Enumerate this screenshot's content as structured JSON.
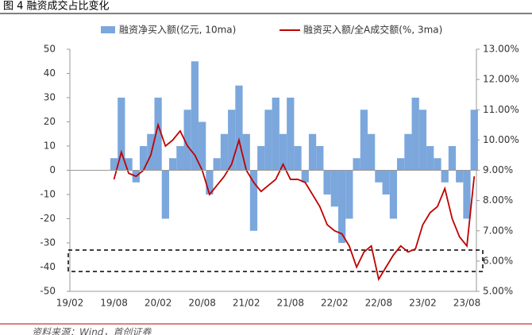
{
  "chart_data": {
    "type": "bar-line",
    "title": "图 4 融资成交占比变化",
    "source": "资料来源：Wind，首创证券",
    "categories": [
      "19/02",
      null,
      null,
      null,
      null,
      null,
      "19/08",
      null,
      null,
      null,
      null,
      null,
      "20/02",
      null,
      null,
      null,
      null,
      null,
      "20/08",
      null,
      null,
      null,
      null,
      null,
      "21/02",
      null,
      null,
      null,
      null,
      null,
      "21/08",
      null,
      null,
      null,
      null,
      null,
      "22/02",
      null,
      null,
      null,
      null,
      null,
      "22/08",
      null,
      null,
      null,
      null,
      null,
      "23/02",
      null,
      null,
      null,
      null,
      null,
      "23/08",
      null
    ],
    "series": [
      {
        "name": "融资净买入额(亿元, 10ma)",
        "color": "#7ba7dc",
        "axis": "y",
        "values": [
          null,
          null,
          null,
          null,
          null,
          0,
          5,
          30,
          5,
          -5,
          10,
          15,
          30,
          -20,
          5,
          10,
          25,
          45,
          20,
          -10,
          5,
          15,
          25,
          35,
          15,
          -25,
          10,
          25,
          30,
          15,
          30,
          10,
          -5,
          15,
          10,
          -10,
          -15,
          -30,
          -20,
          5,
          25,
          15,
          -5,
          -10,
          -20,
          5,
          15,
          30,
          25,
          10,
          5,
          -5,
          10,
          -5,
          -20,
          25
        ]
      },
      {
        "name": "融资买入额/全A成交额(%, 3ma)",
        "color": "#c00000",
        "axis": "y2",
        "values": [
          null,
          null,
          null,
          null,
          null,
          null,
          8.7,
          9.6,
          8.9,
          8.8,
          9.0,
          9.5,
          10.5,
          9.8,
          10.0,
          10.3,
          9.8,
          9.5,
          9.0,
          8.2,
          8.5,
          8.8,
          9.2,
          10.0,
          9.0,
          8.6,
          8.3,
          8.5,
          8.7,
          9.2,
          8.7,
          8.7,
          8.6,
          8.2,
          7.8,
          7.2,
          7.0,
          6.9,
          6.5,
          5.8,
          6.3,
          6.5,
          5.4,
          5.8,
          6.2,
          6.5,
          6.3,
          6.4,
          7.2,
          7.6,
          7.8,
          8.4,
          7.4,
          6.8,
          6.5,
          8.8
        ]
      }
    ],
    "ylim": [
      -50,
      50
    ],
    "yticks": [
      -50,
      -40,
      -30,
      -20,
      -10,
      0,
      10,
      20,
      30,
      40,
      50
    ],
    "y2lim": [
      5,
      13
    ],
    "y2ticks": [
      {
        "value": 5,
        "label": "5.00%"
      },
      {
        "value": 6,
        "label": "6.00%"
      },
      {
        "value": 7,
        "label": "7.00%"
      },
      {
        "value": 8,
        "label": "8.00%"
      },
      {
        "value": 9,
        "label": "9.00%"
      },
      {
        "value": 10,
        "label": "10.00%"
      },
      {
        "value": 11,
        "label": "11.00%"
      },
      {
        "value": 12,
        "label": "12.00%"
      },
      {
        "value": 13,
        "label": "13.00%"
      }
    ],
    "grid": false
  }
}
